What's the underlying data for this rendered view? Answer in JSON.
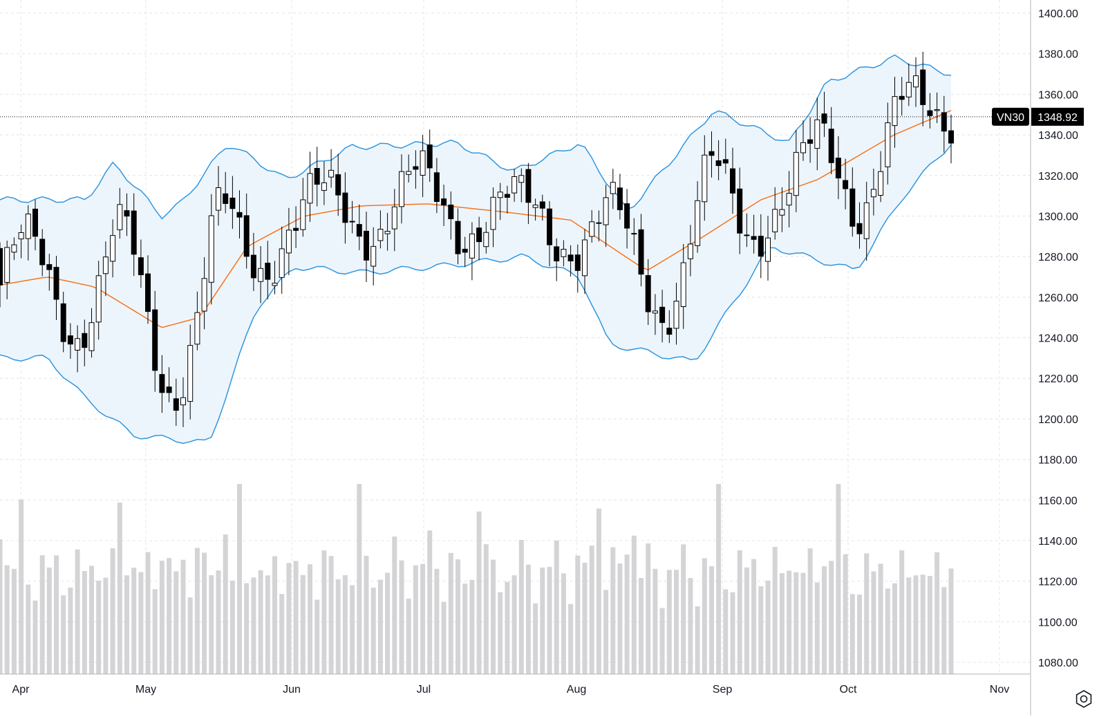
{
  "chart_data": {
    "type": "candlestick",
    "symbol": "VN30",
    "last_price": "1348.92",
    "y_axis": {
      "min": 1080,
      "max": 1400,
      "ticks": [
        1400,
        1380,
        1360,
        1340,
        1320,
        1300,
        1280,
        1260,
        1240,
        1220,
        1200,
        1180,
        1160,
        1140,
        1120,
        1100,
        1080
      ],
      "tick_labels": [
        "1400.00",
        "1380.00",
        "1360.00",
        "1340.00",
        "1320.00",
        "1300.00",
        "1280.00",
        "1260.00",
        "1240.00",
        "1220.00",
        "1200.00",
        "1180.00",
        "1160.00",
        "1140.00",
        "1120.00",
        "1100.00",
        "1080.00"
      ]
    },
    "x_axis": {
      "labels": [
        "Apr",
        "May",
        "Jun",
        "Jul",
        "Aug",
        "Sep",
        "Oct",
        "Nov"
      ]
    },
    "grid": true,
    "indicators": [
      "Bollinger Bands (upper, basis, lower)",
      "Volume"
    ],
    "colors": {
      "up_body": "#ffffff",
      "down_body": "#000000",
      "wick": "#000000",
      "band_line": "#2f96e0",
      "band_fill": "#e8f3fb",
      "basis": "#f7741d",
      "volume": "#d4d4d7",
      "grid": "#e3e4e8",
      "label_bg": "#000000",
      "label_text": "#ffffff"
    },
    "key_points": {
      "upper_band": [
        [
          "Apr",
          1308
        ],
        [
          "Apr-mid",
          1308
        ],
        [
          "Apr-end",
          1326
        ],
        [
          "May",
          1300
        ],
        [
          "May-mid",
          1306
        ],
        [
          "May-end",
          1336
        ],
        [
          "Jun",
          1318
        ],
        [
          "Jun-mid",
          1334
        ],
        [
          "Jul",
          1336
        ],
        [
          "Jul-mid",
          1322
        ],
        [
          "Aug",
          1336
        ],
        [
          "Aug-mid",
          1302
        ],
        [
          "Sep",
          1352
        ],
        [
          "Sep-mid",
          1336
        ],
        [
          "Oct",
          1366
        ],
        [
          "Oct-mid",
          1378
        ],
        [
          "Oct-end",
          1370
        ]
      ],
      "basis": [
        [
          "Apr",
          1266
        ],
        [
          "Apr-mid",
          1270
        ],
        [
          "Apr-end",
          1265
        ],
        [
          "May",
          1245
        ],
        [
          "May-mid",
          1250
        ],
        [
          "May-end",
          1285
        ],
        [
          "Jun",
          1300
        ],
        [
          "Jun-mid",
          1305
        ],
        [
          "Jul",
          1306
        ],
        [
          "Jul-mid",
          1302
        ],
        [
          "Aug",
          1298
        ],
        [
          "Aug-mid",
          1273
        ],
        [
          "Sep",
          1290
        ],
        [
          "Sep-mid",
          1308
        ],
        [
          "Oct",
          1318
        ],
        [
          "Oct-mid",
          1340
        ],
        [
          "Oct-end",
          1352
        ]
      ],
      "lower_band": [
        [
          "Apr",
          1230
        ],
        [
          "Apr-mid",
          1230
        ],
        [
          "Apr-end",
          1210
        ],
        [
          "May",
          1192
        ],
        [
          "May-mid",
          1188
        ],
        [
          "May-end",
          1255
        ],
        [
          "Jun",
          1275
        ],
        [
          "Jun-mid",
          1272
        ],
        [
          "Jul",
          1276
        ],
        [
          "Jul-mid",
          1280
        ],
        [
          "Aug",
          1270
        ],
        [
          "Aug-mid",
          1237
        ],
        [
          "Sep",
          1228
        ],
        [
          "Sep-mid",
          1285
        ],
        [
          "Oct",
          1273
        ],
        [
          "Oct-mid",
          1310
        ],
        [
          "Oct-end",
          1336
        ]
      ]
    }
  }
}
